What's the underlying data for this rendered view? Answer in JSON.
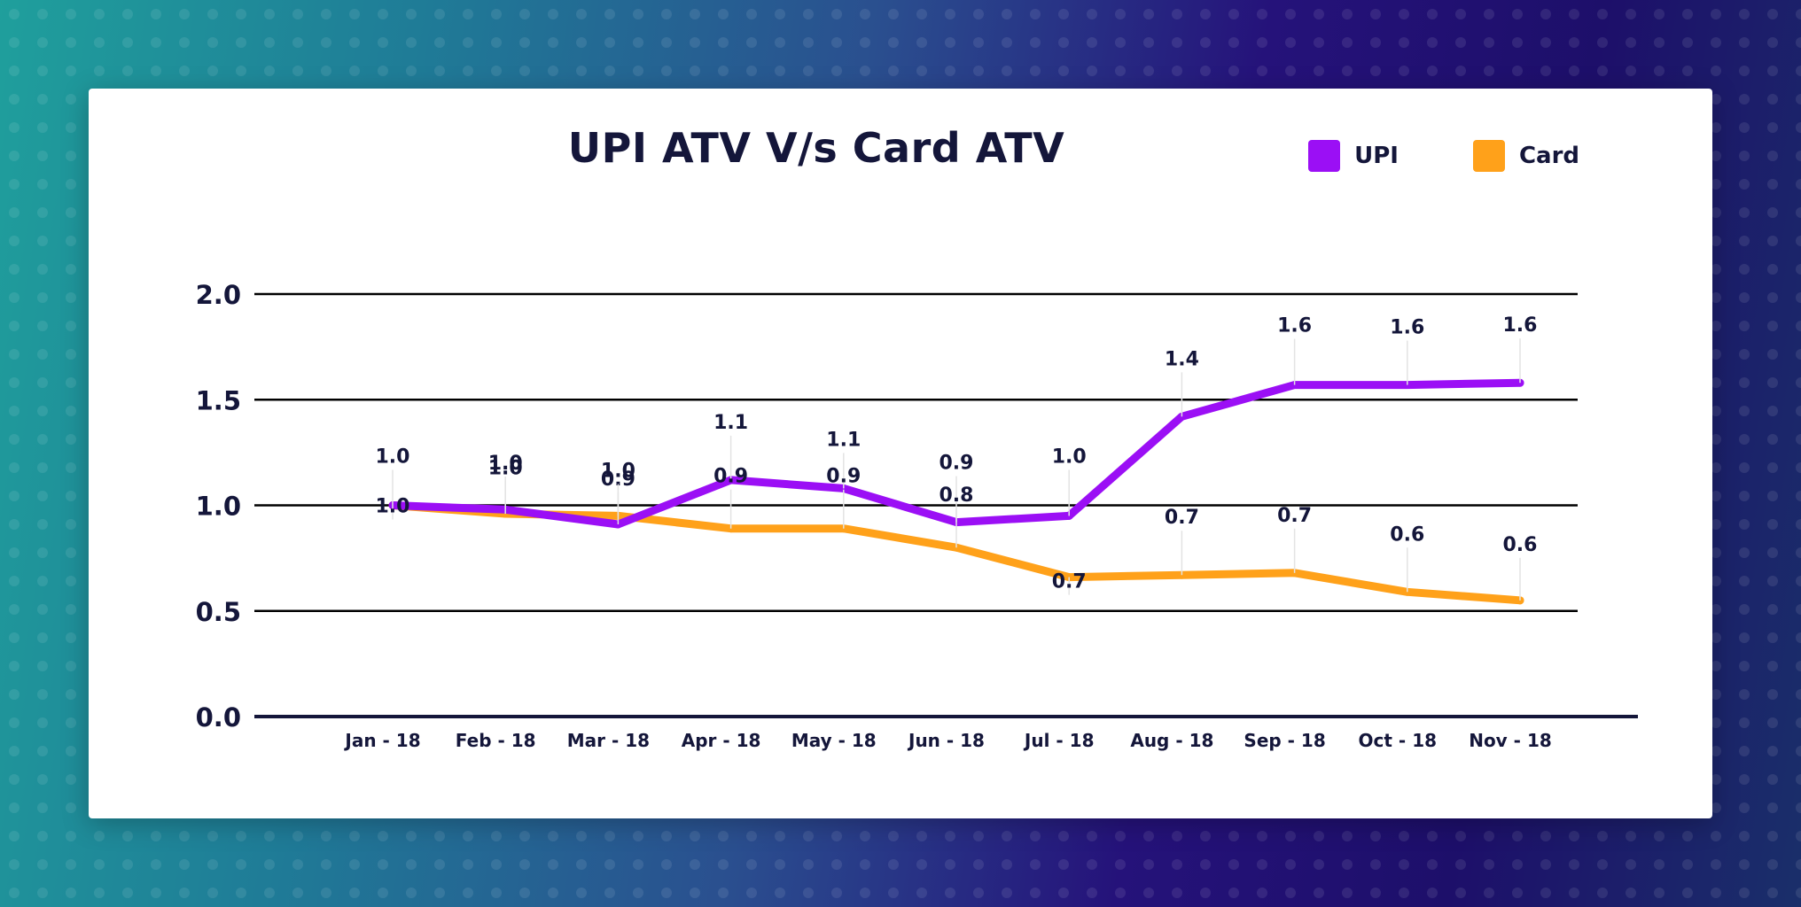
{
  "chart_data": {
    "type": "line",
    "title": "UPI ATV V/s Card ATV",
    "xlabel": "",
    "ylabel": "",
    "categories": [
      "Jan - 18",
      "Feb - 18",
      "Mar - 18",
      "Apr - 18",
      "May - 18",
      "Jun - 18",
      "Jul - 18",
      "Aug - 18",
      "Sep - 18",
      "Oct - 18",
      "Nov - 18"
    ],
    "ylim": [
      0,
      2
    ],
    "yticks": [
      "0.0",
      "0.5",
      "1.0",
      "1.5",
      "2.0"
    ],
    "grid": true,
    "legend_position": "top-right",
    "series": [
      {
        "name": "UPI",
        "color": "#9b0ff5",
        "values": [
          1.0,
          0.98,
          0.91,
          1.12,
          1.08,
          0.92,
          0.95,
          1.42,
          1.57,
          1.57,
          1.58
        ],
        "labels": [
          "1.0",
          "1.0",
          "0.9",
          "1.1",
          "1.1",
          "0.9",
          "1.0",
          "1.4",
          "1.6",
          "1.6",
          "1.6"
        ]
      },
      {
        "name": "Card",
        "color": "#ffa11a",
        "values": [
          1.0,
          0.96,
          0.95,
          0.89,
          0.89,
          0.8,
          0.66,
          0.67,
          0.68,
          0.59,
          0.55
        ],
        "labels": [
          "1.0",
          "1.0",
          "1.0",
          "0.9",
          "0.9",
          "0.8",
          "0.7",
          "0.7",
          "0.7",
          "0.6",
          "0.6"
        ]
      }
    ]
  }
}
